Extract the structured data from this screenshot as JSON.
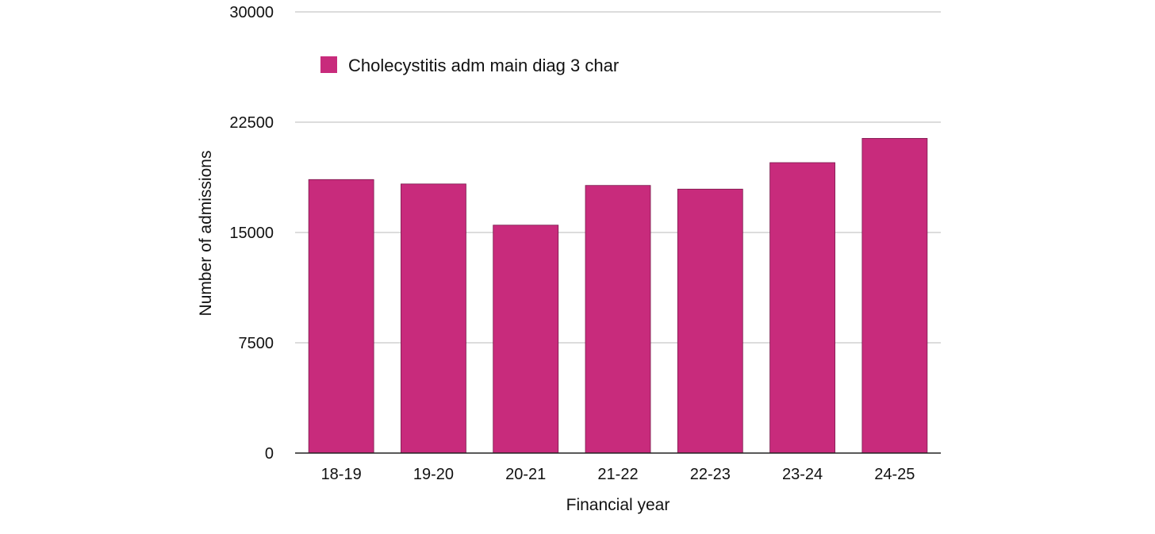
{
  "chart_data": {
    "type": "bar",
    "title": "",
    "xlabel": "Financial year",
    "ylabel": "Number of admissions",
    "categories": [
      "18-19",
      "19-20",
      "20-21",
      "21-22",
      "22-23",
      "23-24",
      "24-25"
    ],
    "series": [
      {
        "name": "Cholecystitis adm main diag 3 char",
        "values": [
          18600,
          18300,
          15500,
          18200,
          17950,
          19750,
          21400
        ],
        "color": "#c82b7c"
      }
    ],
    "ylim": [
      0,
      30000
    ],
    "yticks": [
      "0",
      "7500",
      "15000",
      "22500",
      "30000"
    ],
    "grid": true,
    "legend_position": "top-left"
  }
}
